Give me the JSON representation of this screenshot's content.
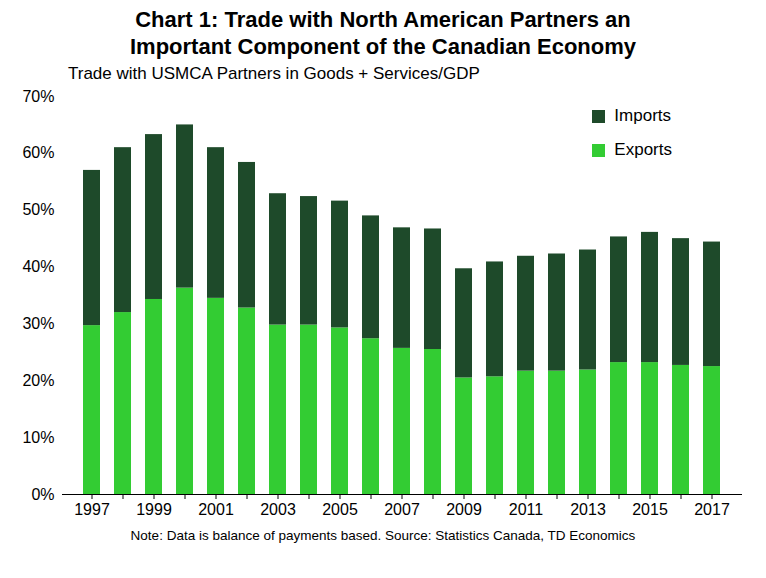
{
  "chart_data": {
    "type": "bar",
    "title": "Chart 1: Trade with North American Partners an Important Component of the Canadian Economy",
    "subtitle": "Trade with USMCA Partners in Goods + Services/GDP",
    "caption": "Note: Data is balance of payments based. Source: Statistics Canada, TD Economics",
    "categories": [
      "1997",
      null,
      "1999",
      null,
      "2001",
      null,
      "2003",
      null,
      "2005",
      null,
      "2007",
      null,
      "2009",
      null,
      "2011",
      null,
      "2013",
      null,
      "2015",
      null,
      "2017"
    ],
    "series": [
      {
        "name": "Exports",
        "color": "#33cc33",
        "values": [
          29.7,
          32.0,
          34.3,
          36.3,
          34.5,
          32.8,
          29.8,
          29.8,
          29.3,
          27.4,
          25.7,
          25.5,
          20.5,
          20.7,
          21.7,
          21.7,
          21.9,
          23.2,
          23.2,
          22.7,
          22.5
        ]
      },
      {
        "name": "Imports",
        "color": "#1e4a2a",
        "values": [
          27.3,
          29.0,
          29.0,
          28.7,
          26.5,
          25.6,
          23.1,
          22.6,
          22.3,
          21.6,
          21.2,
          21.2,
          19.2,
          20.2,
          20.2,
          20.6,
          21.1,
          22.1,
          22.9,
          22.3,
          21.9
        ]
      }
    ],
    "ylim": [
      0,
      70
    ],
    "yticks": [
      {
        "value": 0,
        "label": "0%"
      },
      {
        "value": 10,
        "label": "10%"
      },
      {
        "value": 20,
        "label": "20%"
      },
      {
        "value": 30,
        "label": "30%"
      },
      {
        "value": 40,
        "label": "40%"
      },
      {
        "value": 50,
        "label": "50%"
      },
      {
        "value": 60,
        "label": "60%"
      },
      {
        "value": 70,
        "label": "70%"
      }
    ],
    "stacked": true,
    "grid": false,
    "legend": "upper right"
  }
}
